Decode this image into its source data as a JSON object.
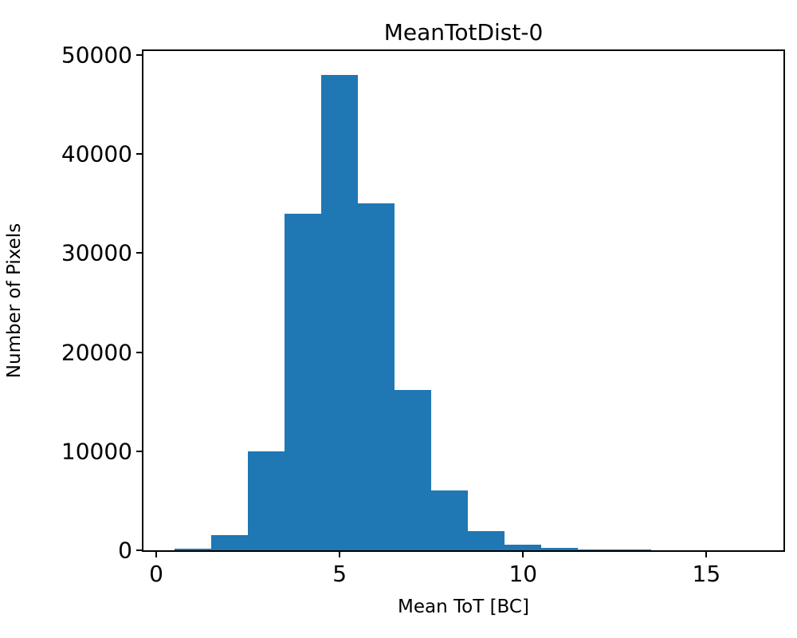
{
  "chart_data": {
    "type": "bar",
    "subtype": "histogram",
    "title": "MeanTotDist-0",
    "xlabel": "Mean ToT [BC]",
    "ylabel": "Number of Pixels",
    "bar_color": "#1f77b4",
    "bin_start": 0.5,
    "bin_width": 1.0,
    "counts": [
      150,
      1500,
      10000,
      34000,
      48000,
      35000,
      16200,
      6000,
      1900,
      600,
      250,
      100,
      60,
      0,
      0,
      0,
      0
    ],
    "xlim": [
      -0.35,
      17.1
    ],
    "ylim": [
      0,
      50400
    ],
    "xticks": [
      0,
      5,
      10,
      15
    ],
    "yticks": [
      0,
      10000,
      20000,
      30000,
      40000,
      50000
    ],
    "grid": "off",
    "legend": "none"
  }
}
